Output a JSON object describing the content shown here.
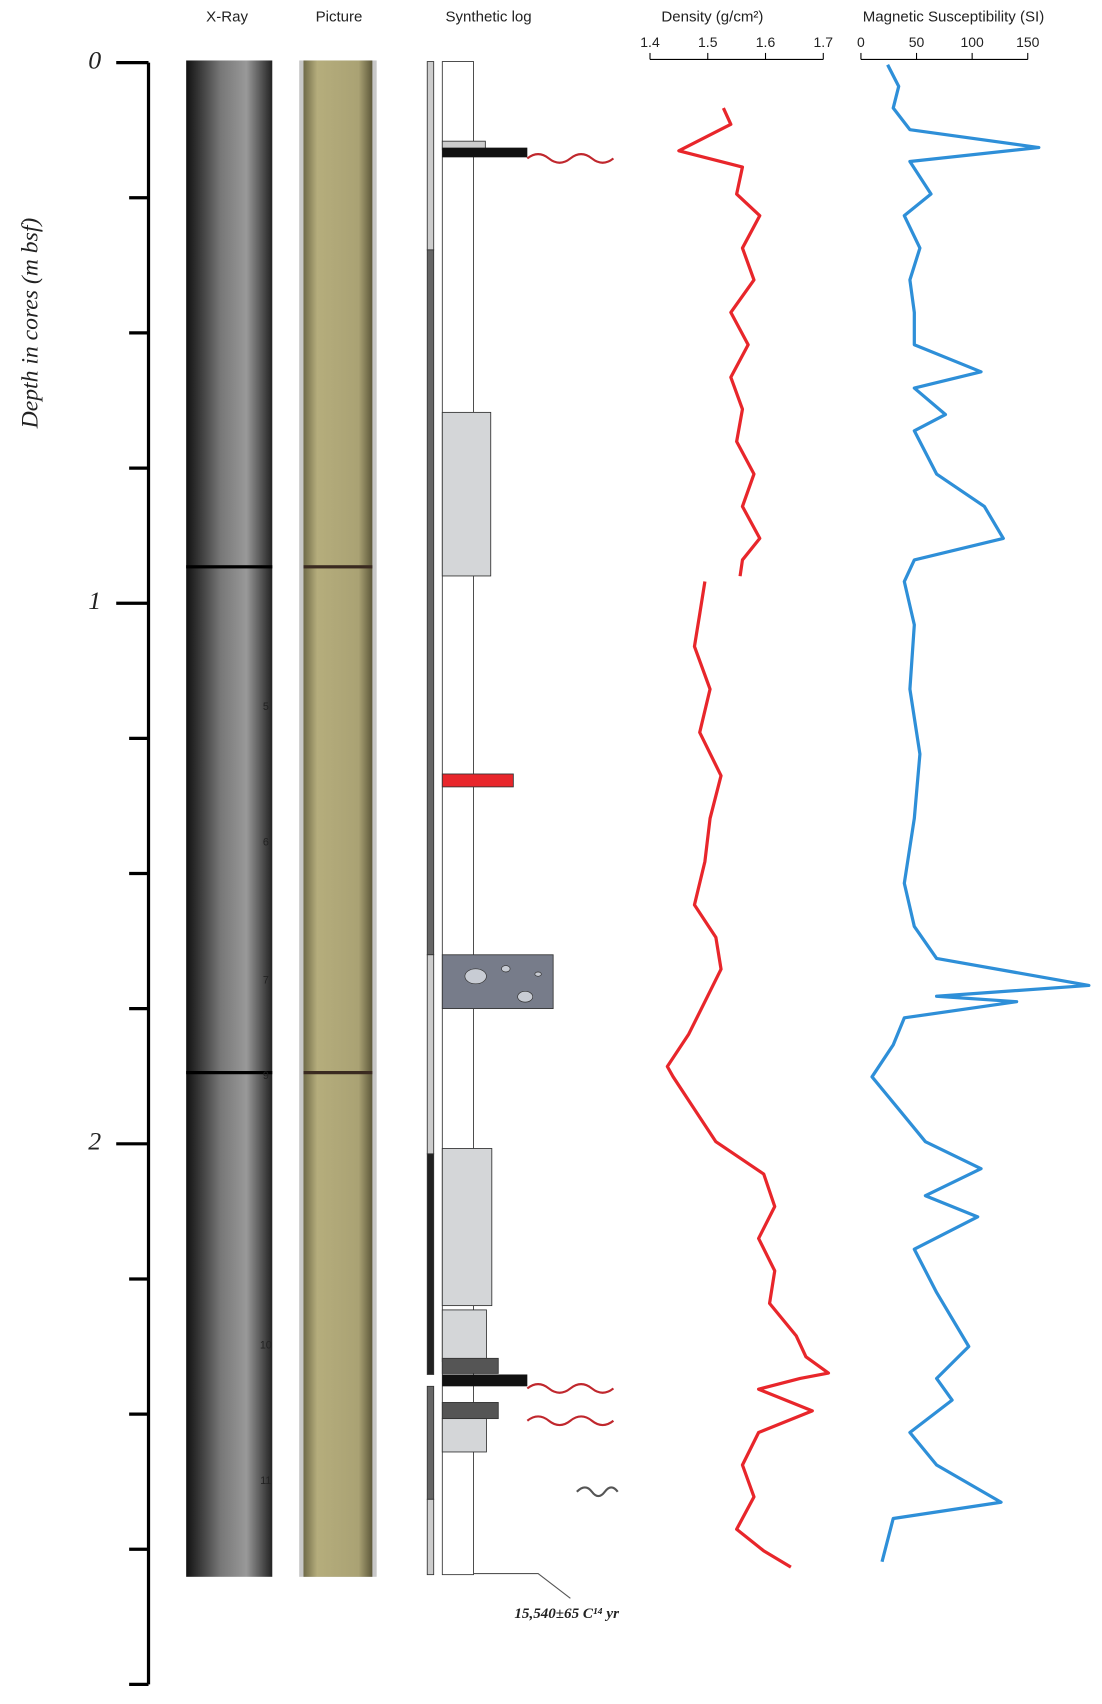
{
  "columns": [
    "X-Ray",
    "Picture",
    "Synthetic log"
  ],
  "depth_axis": {
    "label": "Depth in cores (m bsf)",
    "lim": [
      0,
      3
    ],
    "ticks": [
      0,
      1,
      2
    ],
    "minor_ticks": [
      0.25,
      0.5,
      0.75,
      1.25,
      1.5,
      1.75,
      2.25,
      2.5,
      2.75,
      3
    ]
  },
  "xray_section_numbers": [
    "5",
    "6",
    "7",
    "9",
    "10",
    "11"
  ],
  "annotation": "15,540±65 C¹⁴ yr",
  "chart_data": [
    {
      "type": "line",
      "x_label": "Density (g/cm²)",
      "xlim": [
        1.4,
        1.7
      ],
      "xticks": [
        1.4,
        1.5,
        1.6,
        1.7
      ],
      "color": "#e8262b",
      "depth": [
        0.084,
        0.114,
        0.163,
        0.193,
        0.243,
        0.283,
        0.343,
        0.402,
        0.462,
        0.522,
        0.582,
        0.641,
        0.701,
        0.761,
        0.821,
        0.88,
        0.92,
        0.95,
        null,
        0.96,
        1.02,
        1.08,
        1.159,
        1.239,
        1.319,
        1.398,
        1.478,
        1.558,
        1.618,
        1.677,
        1.737,
        1.797,
        1.857,
        1.876,
        1.936,
        1.996,
        2.056,
        2.116,
        2.175,
        2.235,
        2.295,
        2.355,
        2.394,
        2.424,
        2.434,
        2.454,
        2.494,
        2.534,
        2.594,
        2.653,
        2.713,
        2.753,
        2.783
      ],
      "values": [
        1.527,
        1.54,
        1.45,
        1.56,
        1.55,
        1.59,
        1.56,
        1.58,
        1.54,
        1.57,
        1.54,
        1.56,
        1.55,
        1.58,
        1.56,
        1.59,
        1.56,
        1.556,
        null,
        1.495,
        1.486,
        1.477,
        1.504,
        1.486,
        1.523,
        1.504,
        1.495,
        1.477,
        1.514,
        1.523,
        1.495,
        1.467,
        1.43,
        1.44,
        1.477,
        1.514,
        1.597,
        1.616,
        1.588,
        1.616,
        1.607,
        1.653,
        1.67,
        1.709,
        1.66,
        1.588,
        1.681,
        1.588,
        1.56,
        1.58,
        1.55,
        1.597,
        1.644
      ]
    },
    {
      "type": "line",
      "x_label": "Magnetic Susceptibility (SI)",
      "xlim": [
        0,
        150
      ],
      "xticks": [
        0,
        50,
        100,
        150
      ],
      "color": "#2e8fd8",
      "depth": [
        0.004,
        0.044,
        0.084,
        0.124,
        0.157,
        0.183,
        0.243,
        0.283,
        0.343,
        0.402,
        0.462,
        0.522,
        0.572,
        0.602,
        0.651,
        0.681,
        0.761,
        0.821,
        0.88,
        0.92,
        0.96,
        1.04,
        1.159,
        1.279,
        1.398,
        1.518,
        1.598,
        1.657,
        1.707,
        1.727,
        1.737,
        1.767,
        1.817,
        1.876,
        1.936,
        1.996,
        2.046,
        2.096,
        2.135,
        2.195,
        2.275,
        2.375,
        2.434,
        2.474,
        2.534,
        2.594,
        2.663,
        2.693,
        2.773
      ],
      "values": [
        24,
        34,
        29,
        44,
        160,
        44,
        63,
        39,
        53,
        44,
        48,
        48,
        108,
        48,
        76,
        48,
        68,
        111,
        128,
        48,
        39,
        48,
        44,
        53,
        48,
        39,
        48,
        68,
        205,
        68,
        140,
        39,
        29,
        10,
        34,
        58,
        108,
        58,
        105,
        48,
        68,
        97,
        68,
        82,
        44,
        68,
        126,
        29,
        19
      ]
    }
  ]
}
